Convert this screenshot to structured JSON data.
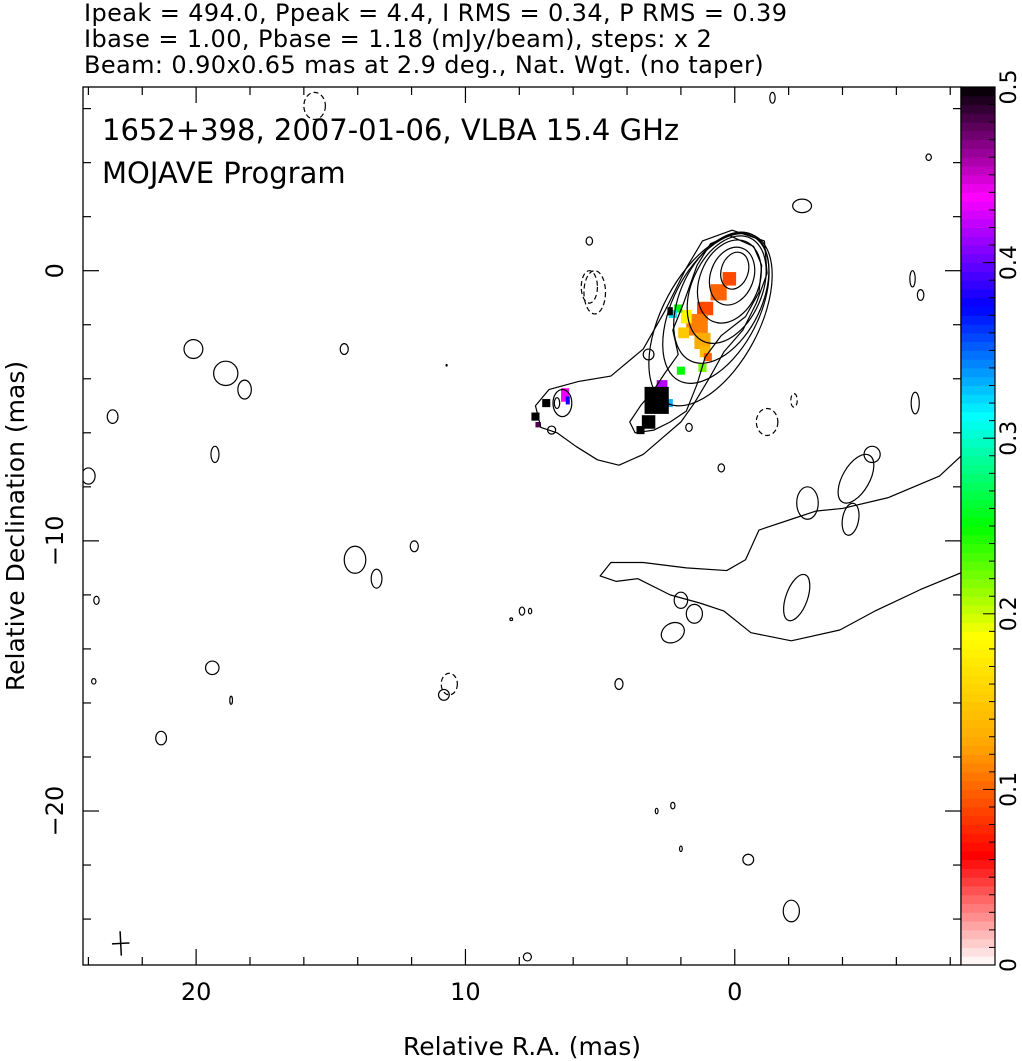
{
  "header": {
    "line1": "Ipeak = 494.0, Ppeak = 4.4, I RMS = 0.34, P RMS = 0.39",
    "line2": "Ibase = 1.00, Pbase = 1.18 (mJy/beam), steps: x 2",
    "line3": "Beam: 0.90x0.65 mas at 2.9 deg., Nat. Wgt. (no taper)"
  },
  "chart_data": {
    "type": "heatmap",
    "title": "1652+398, 2007-01-06, VLBA 15.4 GHz",
    "subtitle": "MOJAVE Program",
    "xlabel": "Relative R.A. (mas)",
    "ylabel": "Relative Declination (mas)",
    "xlim": [
      24.2,
      -8.4
    ],
    "ylim": [
      -25.7,
      6.8
    ],
    "x_ticks": [
      20,
      10,
      0
    ],
    "x_tick_labels": [
      "20",
      "10",
      "0"
    ],
    "y_ticks": [
      0,
      -10,
      -20
    ],
    "y_tick_labels": [
      "0",
      "−10",
      "−20"
    ],
    "colorbar": {
      "range": [
        0,
        0.5
      ],
      "ticks": [
        0,
        0.1,
        0.2,
        0.3,
        0.4,
        0.5
      ],
      "tick_labels": [
        "0",
        "0.1",
        "0.2",
        "0.3",
        "0.4",
        "0.5"
      ],
      "colors": [
        "#ffffff",
        "#ff0000",
        "#ffa500",
        "#ffff00",
        "#00ff00",
        "#00ffff",
        "#0000ff",
        "#ff00ff",
        "#000000"
      ]
    },
    "beam": {
      "major_mas": 0.9,
      "minor_mas": 0.65,
      "pa_deg": 2.9,
      "center": [
        22.8,
        -24.9
      ]
    },
    "contours": {
      "core_ellipses": [
        {
          "x": 0.0,
          "y": 0.0,
          "rx": 0.5,
          "ry": 0.7,
          "rot": 18
        },
        {
          "x": 0.1,
          "y": -0.2,
          "rx": 0.8,
          "ry": 1.1,
          "rot": 20
        },
        {
          "x": 0.2,
          "y": -0.4,
          "rx": 1.1,
          "ry": 1.6,
          "rot": 22
        },
        {
          "x": 0.3,
          "y": -0.7,
          "rx": 1.3,
          "ry": 2.1,
          "rot": 24
        },
        {
          "x": 0.5,
          "y": -1.0,
          "rx": 1.5,
          "ry": 2.6,
          "rot": 26
        },
        {
          "x": 0.7,
          "y": -1.4,
          "rx": 1.6,
          "ry": 3.0,
          "rot": 27
        },
        {
          "x": 0.9,
          "y": -1.8,
          "rx": 1.8,
          "ry": 3.5,
          "rot": 28
        }
      ],
      "jet_outlines": [
        [
          [
            -0.7,
            0.9
          ],
          [
            0.2,
            1.3
          ],
          [
            0.9,
            1.0
          ],
          [
            1.4,
            0.2
          ],
          [
            1.9,
            -1.2
          ],
          [
            2.3,
            -2.2
          ],
          [
            2.1,
            -3.1
          ],
          [
            2.6,
            -3.8
          ],
          [
            3.0,
            -4.4
          ],
          [
            3.5,
            -5.0
          ],
          [
            3.9,
            -5.6
          ],
          [
            3.7,
            -6.0
          ],
          [
            3.0,
            -5.9
          ],
          [
            2.4,
            -5.6
          ],
          [
            1.8,
            -5.2
          ],
          [
            1.4,
            -4.2
          ],
          [
            1.1,
            -3.2
          ],
          [
            0.5,
            -2.4
          ],
          [
            -0.4,
            -1.7
          ],
          [
            -0.9,
            -0.8
          ],
          [
            -1.0,
            0.2
          ]
        ],
        [
          [
            -1.1,
            1.1
          ],
          [
            0.1,
            1.5
          ],
          [
            1.2,
            1.1
          ],
          [
            1.8,
            0.1
          ],
          [
            2.6,
            -1.5
          ],
          [
            3.4,
            -2.9
          ],
          [
            4.6,
            -3.9
          ],
          [
            5.8,
            -4.1
          ],
          [
            6.9,
            -4.4
          ],
          [
            7.4,
            -5.0
          ],
          [
            7.2,
            -5.8
          ],
          [
            6.6,
            -6.0
          ],
          [
            5.9,
            -6.5
          ],
          [
            5.1,
            -7.0
          ],
          [
            4.3,
            -7.2
          ],
          [
            3.4,
            -6.8
          ],
          [
            2.7,
            -6.2
          ],
          [
            2.0,
            -5.6
          ],
          [
            1.5,
            -4.9
          ],
          [
            0.9,
            -3.9
          ],
          [
            0.4,
            -3.0
          ],
          [
            -0.3,
            -2.2
          ],
          [
            -0.8,
            -1.2
          ],
          [
            -1.2,
            -0.1
          ]
        ]
      ],
      "extended_outline": [
        [
          -10.4,
          -5.8
        ],
        [
          -11.6,
          -6.0
        ],
        [
          -11.8,
          -7.1
        ],
        [
          -11.2,
          -8.7
        ],
        [
          -10.0,
          -10.2
        ],
        [
          -8.6,
          -11.1
        ],
        [
          -6.9,
          -11.8
        ],
        [
          -5.2,
          -12.6
        ],
        [
          -3.9,
          -13.3
        ],
        [
          -2.1,
          -13.7
        ],
        [
          -0.6,
          -13.4
        ],
        [
          0.4,
          -12.6
        ],
        [
          1.3,
          -12.3
        ],
        [
          2.4,
          -12.0
        ],
        [
          3.6,
          -11.4
        ],
        [
          4.4,
          -11.5
        ],
        [
          5.0,
          -11.3
        ],
        [
          4.6,
          -10.8
        ],
        [
          3.4,
          -10.8
        ],
        [
          1.8,
          -11.0
        ],
        [
          0.3,
          -11.1
        ],
        [
          -0.4,
          -10.7
        ],
        [
          -0.9,
          -9.6
        ],
        [
          -2.1,
          -9.2
        ],
        [
          -3.0,
          -8.9
        ],
        [
          -4.0,
          -8.8
        ],
        [
          -5.7,
          -8.4
        ],
        [
          -7.6,
          -7.6
        ],
        [
          -8.9,
          -6.4
        ]
      ],
      "knot_ellipses": [
        {
          "x": 6.4,
          "y": -4.9,
          "rx": 0.35,
          "ry": 0.5,
          "rot": 0
        },
        {
          "x": -4.3,
          "y": -9.2,
          "rx": 0.3,
          "ry": 0.6,
          "rot": 10
        },
        {
          "x": -2.7,
          "y": -8.6,
          "rx": 0.4,
          "ry": 0.6,
          "rot": 0
        },
        {
          "x": -4.5,
          "y": -7.7,
          "rx": 0.5,
          "ry": 1.0,
          "rot": 30
        },
        {
          "x": -5.1,
          "y": -6.8,
          "rx": 0.3,
          "ry": 0.3,
          "rot": 0
        },
        {
          "x": -2.3,
          "y": -12.1,
          "rx": 0.4,
          "ry": 0.9,
          "rot": 20
        },
        {
          "x": 2.0,
          "y": -12.2,
          "rx": 0.25,
          "ry": 0.3,
          "rot": 0
        },
        {
          "x": 1.5,
          "y": -12.7,
          "rx": 0.3,
          "ry": 0.35,
          "rot": 0
        },
        {
          "x": 2.3,
          "y": -13.4,
          "rx": 0.45,
          "ry": 0.35,
          "rot": -30
        }
      ],
      "islands": [
        {
          "x": 20.1,
          "y": -2.9,
          "rx": 0.35,
          "ry": 0.35
        },
        {
          "x": 18.9,
          "y": -3.8,
          "rx": 0.45,
          "ry": 0.45
        },
        {
          "x": 18.2,
          "y": -4.4,
          "rx": 0.25,
          "ry": 0.35
        },
        {
          "x": 23.1,
          "y": -5.4,
          "rx": 0.2,
          "ry": 0.25
        },
        {
          "x": 19.3,
          "y": -6.8,
          "rx": 0.15,
          "ry": 0.3
        },
        {
          "x": 24.0,
          "y": -7.6,
          "rx": 0.25,
          "ry": 0.3
        },
        {
          "x": 14.5,
          "y": -2.9,
          "rx": 0.15,
          "ry": 0.2
        },
        {
          "x": 14.1,
          "y": -10.7,
          "rx": 0.4,
          "ry": 0.5
        },
        {
          "x": 13.3,
          "y": -11.4,
          "rx": 0.2,
          "ry": 0.35
        },
        {
          "x": 11.9,
          "y": -10.2,
          "rx": 0.15,
          "ry": 0.2
        },
        {
          "x": 19.4,
          "y": -14.7,
          "rx": 0.25,
          "ry": 0.25
        },
        {
          "x": 18.7,
          "y": -15.9,
          "rx": 0.05,
          "ry": 0.15
        },
        {
          "x": 21.3,
          "y": -17.3,
          "rx": 0.2,
          "ry": 0.25
        },
        {
          "x": 7.9,
          "y": -12.6,
          "rx": 0.1,
          "ry": 0.15
        },
        {
          "x": 4.3,
          "y": -15.3,
          "rx": 0.15,
          "ry": 0.2
        },
        {
          "x": 10.8,
          "y": -15.7,
          "rx": 0.2,
          "ry": 0.2
        },
        {
          "x": 6.8,
          "y": -5.9,
          "rx": 0.15,
          "ry": 0.15
        },
        {
          "x": 6.6,
          "y": -4.9,
          "rx": 0.1,
          "ry": 0.2
        },
        {
          "x": 3.2,
          "y": -3.1,
          "rx": 0.2,
          "ry": 0.2
        },
        {
          "x": 1.7,
          "y": -5.8,
          "rx": 0.12,
          "ry": 0.15
        },
        {
          "x": -7.2,
          "y": 4.2,
          "rx": 0.1,
          "ry": 0.12
        },
        {
          "x": -2.5,
          "y": 2.4,
          "rx": 0.35,
          "ry": 0.25
        },
        {
          "x": -6.6,
          "y": -0.3,
          "rx": 0.1,
          "ry": 0.3
        },
        {
          "x": -6.9,
          "y": -0.9,
          "rx": 0.12,
          "ry": 0.2
        },
        {
          "x": -1.4,
          "y": 6.4,
          "rx": 0.1,
          "ry": 0.2
        },
        {
          "x": -6.7,
          "y": -4.9,
          "rx": 0.15,
          "ry": 0.4
        },
        {
          "x": 5.4,
          "y": 1.1,
          "rx": 0.12,
          "ry": 0.15
        },
        {
          "x": 0.5,
          "y": -7.3,
          "rx": 0.12,
          "ry": 0.15
        },
        {
          "x": 2.0,
          "y": -21.4,
          "rx": 0.05,
          "ry": 0.1
        },
        {
          "x": 2.9,
          "y": -20.0,
          "rx": 0.05,
          "ry": 0.1
        },
        {
          "x": 2.3,
          "y": -19.8,
          "rx": 0.08,
          "ry": 0.12
        },
        {
          "x": -0.5,
          "y": -21.8,
          "rx": 0.2,
          "ry": 0.2
        },
        {
          "x": -2.1,
          "y": -23.7,
          "rx": 0.3,
          "ry": 0.4
        },
        {
          "x": 7.7,
          "y": -25.4,
          "rx": 0.15,
          "ry": 0.15
        },
        {
          "x": 23.7,
          "y": -12.2,
          "rx": 0.1,
          "ry": 0.15
        },
        {
          "x": 23.8,
          "y": -15.2,
          "rx": 0.08,
          "ry": 0.1
        },
        {
          "x": 10.7,
          "y": -3.5,
          "rx": 0.02,
          "ry": 0.03
        },
        {
          "x": 7.6,
          "y": -12.6,
          "rx": 0.06,
          "ry": 0.1
        },
        {
          "x": 8.3,
          "y": -12.9,
          "rx": 0.05,
          "ry": 0.05
        }
      ],
      "negative_dashed": [
        {
          "x": 15.6,
          "y": 6.1,
          "rx": 0.4,
          "ry": 0.5
        },
        {
          "x": 5.4,
          "y": -0.6,
          "rx": 0.3,
          "ry": 0.6
        },
        {
          "x": 5.2,
          "y": -0.8,
          "rx": 0.4,
          "ry": 0.8
        },
        {
          "x": -1.2,
          "y": -5.6,
          "rx": 0.4,
          "ry": 0.5
        },
        {
          "x": -2.2,
          "y": -4.8,
          "rx": 0.12,
          "ry": 0.25
        },
        {
          "x": 10.6,
          "y": -15.3,
          "rx": 0.3,
          "ry": 0.4
        }
      ]
    },
    "polarization_pixels": [
      {
        "x": 0.2,
        "y": -0.3,
        "w": 0.5,
        "h": 0.5,
        "value": 0.09
      },
      {
        "x": 0.6,
        "y": -0.8,
        "w": 0.6,
        "h": 0.6,
        "value": 0.1
      },
      {
        "x": 1.1,
        "y": -1.4,
        "w": 0.6,
        "h": 0.5,
        "value": 0.09
      },
      {
        "x": 1.4,
        "y": -2.0,
        "w": 0.8,
        "h": 0.8,
        "value": 0.11
      },
      {
        "x": 1.2,
        "y": -2.6,
        "w": 0.6,
        "h": 0.6,
        "value": 0.13
      },
      {
        "x": 1.9,
        "y": -2.3,
        "w": 0.4,
        "h": 0.4,
        "value": 0.15
      },
      {
        "x": 1.8,
        "y": -1.7,
        "w": 0.4,
        "h": 0.5,
        "value": 0.18
      },
      {
        "x": 2.1,
        "y": -1.4,
        "w": 0.3,
        "h": 0.3,
        "value": 0.25
      },
      {
        "x": 2.3,
        "y": -1.6,
        "w": 0.3,
        "h": 0.3,
        "value": 0.32
      },
      {
        "x": 2.4,
        "y": -1.5,
        "w": 0.2,
        "h": 0.3,
        "value": 0.5
      },
      {
        "x": 1.1,
        "y": -3.0,
        "w": 0.4,
        "h": 0.4,
        "value": 0.14
      },
      {
        "x": 1.0,
        "y": -3.2,
        "w": 0.3,
        "h": 0.3,
        "value": 0.1
      },
      {
        "x": 1.2,
        "y": -3.6,
        "w": 0.3,
        "h": 0.3,
        "value": 0.22
      },
      {
        "x": 2.0,
        "y": -3.7,
        "w": 0.3,
        "h": 0.3,
        "value": 0.25
      },
      {
        "x": 2.7,
        "y": -4.3,
        "w": 0.4,
        "h": 0.5,
        "value": 0.42
      },
      {
        "x": 2.5,
        "y": -4.9,
        "w": 0.4,
        "h": 0.3,
        "value": 0.33
      },
      {
        "x": 2.9,
        "y": -4.8,
        "w": 0.9,
        "h": 1.0,
        "value": 0.5
      },
      {
        "x": 3.2,
        "y": -5.6,
        "w": 0.5,
        "h": 0.5,
        "value": 0.5
      },
      {
        "x": 3.5,
        "y": -5.9,
        "w": 0.3,
        "h": 0.3,
        "value": 0.5
      },
      {
        "x": 6.3,
        "y": -4.6,
        "w": 0.3,
        "h": 0.5,
        "value": 0.44
      },
      {
        "x": 6.2,
        "y": -4.8,
        "w": 0.15,
        "h": 0.3,
        "value": 0.38
      },
      {
        "x": 7.0,
        "y": -4.9,
        "w": 0.3,
        "h": 0.3,
        "value": 0.5
      },
      {
        "x": 7.4,
        "y": -5.4,
        "w": 0.3,
        "h": 0.3,
        "value": 0.5
      },
      {
        "x": 7.3,
        "y": -5.7,
        "w": 0.2,
        "h": 0.2,
        "value": 0.48
      }
    ]
  }
}
